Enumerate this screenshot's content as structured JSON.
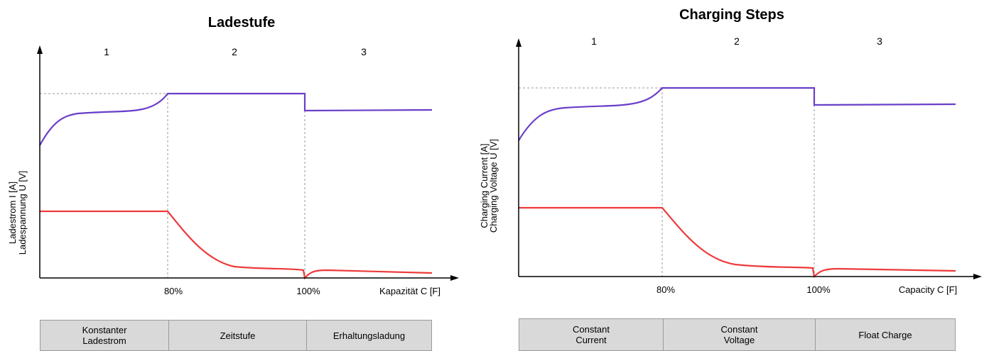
{
  "diagrams": [
    {
      "title": "Ladestufe",
      "steps": [
        "1",
        "2",
        "3"
      ],
      "x_ticks": [
        "80%",
        "100%"
      ],
      "x_axis_label": "Kapazität C [F]",
      "y_axis_label_line1": "Ladestrom I [A]",
      "y_axis_label_line2": "Ladespannung U [V]",
      "phases": [
        "Konstanter\nLadestrom",
        "Zeitstufe",
        "Erhaltungsladung"
      ]
    },
    {
      "title": "Charging Steps",
      "steps": [
        "1",
        "2",
        "3"
      ],
      "x_ticks": [
        "80%",
        "100%"
      ],
      "x_axis_label": "Capacity C [F]",
      "y_axis_label_line1": "Charging Current [A]",
      "y_axis_label_line2": "Charging Voltage U [V]",
      "phases": [
        "Constant\nCurrent",
        "Constant\nVoltage",
        "Float Charge"
      ]
    }
  ],
  "colors": {
    "voltage_curve": "#6a3ec9",
    "current_curve": "#ee3a3a",
    "axes": "#000000",
    "guide_lines": "#9a9a9a",
    "phase_fill": "#d9d9d9"
  }
}
